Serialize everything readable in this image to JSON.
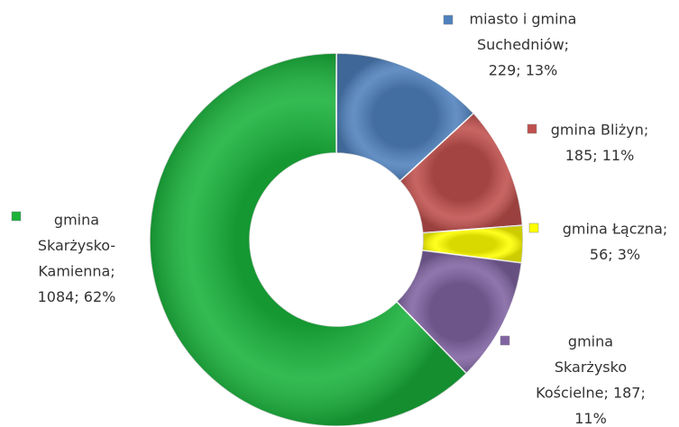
{
  "chart_data": {
    "type": "donut",
    "values": [
      229,
      185,
      56,
      187,
      1084
    ],
    "value_labels": [
      [
        "miasto i gmina",
        "Suchedniów;",
        "229; 13%"
      ],
      [
        "gmina Bliżyn;",
        "185; 11%"
      ],
      [
        "gmina Łączna;",
        "56; 3%"
      ],
      [
        "gmina",
        "Skarżysko",
        "Kościelne; 187;",
        "11%"
      ],
      [
        "gmina",
        "Skarżysko-",
        "Kamienna;",
        "1084; 62%"
      ]
    ],
    "colors": [
      "#4f81bd",
      "#c0504d",
      "#ffff00",
      "#8064a2",
      "#19b23b"
    ]
  }
}
